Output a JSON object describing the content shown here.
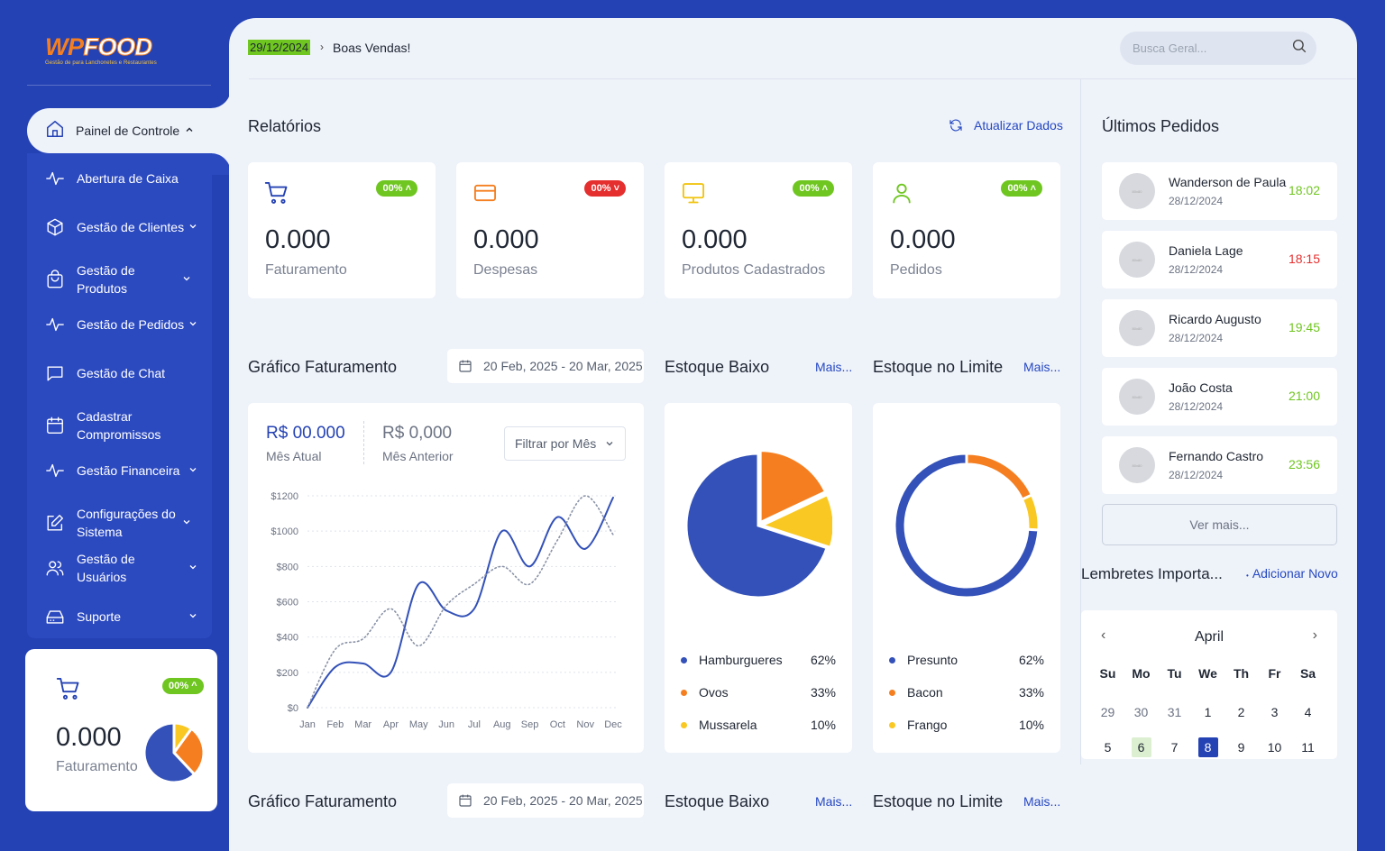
{
  "colors": {
    "primary": "#2442b4",
    "accent": "#f57f20",
    "success": "#6fc620",
    "danger": "#e52e2e",
    "yellow": "#f9c823"
  },
  "logo": {
    "brand_a": "WP",
    "brand_b": "FOOD",
    "tagline": "Gestão de para Lanchonetes e Restaurantes"
  },
  "sidebar": {
    "active": {
      "label": "Painel de Controle",
      "icon": "home-icon"
    },
    "items": [
      {
        "label": "Abertura de Caixa",
        "icon": "activity-icon",
        "has_chevron": false
      },
      {
        "label": "Gestão de Clientes",
        "icon": "box-icon",
        "has_chevron": true
      },
      {
        "label": "Gestão de Produtos",
        "icon": "bag-icon",
        "has_chevron": true
      },
      {
        "label": "Gestão de Pedidos",
        "icon": "activity-icon",
        "has_chevron": true
      },
      {
        "label": "Gestão de Chat",
        "icon": "chat-icon",
        "has_chevron": false
      },
      {
        "label": "Cadastrar Compromissos",
        "icon": "calendar-icon",
        "has_chevron": false
      },
      {
        "label": "Gestão Financeira",
        "icon": "activity-icon",
        "has_chevron": true
      },
      {
        "label": "Configurações do Sistema",
        "icon": "edit-icon",
        "has_chevron": true
      },
      {
        "label": "Gestão de Usuários",
        "icon": "users-icon",
        "has_chevron": true
      },
      {
        "label": "Suporte",
        "icon": "drive-icon",
        "has_chevron": true
      }
    ],
    "card": {
      "badge": "00%",
      "value": "0.000",
      "label": "Faturamento",
      "pie": [
        62,
        28,
        10
      ]
    }
  },
  "header": {
    "date": "29/12/2024",
    "greeting": "Boas Vendas!",
    "search_placeholder": "Busca Geral..."
  },
  "reports": {
    "title": "Relatórios",
    "refresh_label": "Atualizar Dados",
    "stats": [
      {
        "value": "0.000",
        "label": "Faturamento",
        "badge": "00%",
        "trend": "up",
        "icon": "cart-icon"
      },
      {
        "value": "0.000",
        "label": "Despesas",
        "badge": "00%",
        "trend": "down",
        "icon": "card-icon"
      },
      {
        "value": "0.000",
        "label": "Produtos Cadastrados",
        "badge": "00%",
        "trend": "up",
        "icon": "monitor-icon"
      },
      {
        "value": "0.000",
        "label": "Pedidos",
        "badge": "00%",
        "trend": "up",
        "icon": "user-icon"
      }
    ]
  },
  "revenue": {
    "title": "Gráfico Faturamento",
    "date_range": "20 Feb, 2025 - 20 Mar, 2025",
    "current_value": "R$ 00.000",
    "current_label": "Mês Atual",
    "previous_value": "R$ 0,000",
    "previous_label": "Mês Anterior",
    "filter_label": "Filtrar por Mês"
  },
  "low_stock": {
    "title": "Estoque Baixo",
    "more": "Mais...",
    "items": [
      {
        "name": "Hamburgueres",
        "pct": "62%",
        "color": "#3351b8"
      },
      {
        "name": "Ovos",
        "pct": "33%",
        "color": "#f57f20"
      },
      {
        "name": "Mussarela",
        "pct": "10%",
        "color": "#f9c823"
      }
    ]
  },
  "limit_stock": {
    "title": "Estoque no Limite",
    "more": "Mais...",
    "items": [
      {
        "name": "Presunto",
        "pct": "62%",
        "color": "#3351b8"
      },
      {
        "name": "Bacon",
        "pct": "33%",
        "color": "#f57f20"
      },
      {
        "name": "Frango",
        "pct": "10%",
        "color": "#f9c823"
      }
    ]
  },
  "orders": {
    "title": "Últimos Pedidos",
    "avatar_placeholder": "80x80",
    "items": [
      {
        "name": "Wanderson de Paula",
        "date": "28/12/2024",
        "time": "18:02",
        "status": "ok"
      },
      {
        "name": "Daniela Lage",
        "date": "28/12/2024",
        "time": "18:15",
        "status": "late"
      },
      {
        "name": "Ricardo Augusto",
        "date": "28/12/2024",
        "time": "19:45",
        "status": "ok"
      },
      {
        "name": "João Costa",
        "date": "28/12/2024",
        "time": "21:00",
        "status": "ok"
      },
      {
        "name": "Fernando Castro",
        "date": "28/12/2024",
        "time": "23:56",
        "status": "ok"
      }
    ],
    "see_more": "Ver mais..."
  },
  "reminders": {
    "title": "Lembretes Importa...",
    "add_label": "Adicionar Novo"
  },
  "calendar": {
    "month": "April",
    "weekdays": [
      "Su",
      "Mo",
      "Tu",
      "We",
      "Th",
      "Fr",
      "Sa"
    ],
    "days": [
      {
        "d": "29",
        "muted": true
      },
      {
        "d": "30",
        "muted": true
      },
      {
        "d": "31",
        "muted": true
      },
      {
        "d": "1"
      },
      {
        "d": "2"
      },
      {
        "d": "3"
      },
      {
        "d": "4"
      },
      {
        "d": "5"
      },
      {
        "d": "6",
        "today": true
      },
      {
        "d": "7"
      },
      {
        "d": "8",
        "selected": true
      },
      {
        "d": "9"
      },
      {
        "d": "10"
      },
      {
        "d": "11"
      }
    ]
  },
  "bottom": {
    "revenue_title": "Gráfico Faturamento",
    "date_range": "20 Feb, 2025 - 20 Mar, 2025",
    "low_stock_title": "Estoque Baixo",
    "limit_stock_title": "Estoque no Limite",
    "more": "Mais..."
  },
  "chart_data": {
    "type": "line",
    "categories": [
      "Jan",
      "Feb",
      "Mar",
      "Apr",
      "May",
      "Jun",
      "Jul",
      "Aug",
      "Sep",
      "Oct",
      "Nov",
      "Dec"
    ],
    "yticks": [
      "$1200",
      "$1000",
      "$800",
      "$600",
      "$400",
      "$200",
      "$0"
    ],
    "ylim": [
      0,
      1200
    ],
    "grid": true,
    "series": [
      {
        "style": "solid",
        "color": "#3351b8",
        "values": [
          0,
          230,
          250,
          200,
          700,
          550,
          560,
          1000,
          800,
          1080,
          900,
          1190
        ]
      },
      {
        "style": "dotted",
        "color": "#8a92a6",
        "values": [
          0,
          330,
          390,
          560,
          350,
          580,
          700,
          800,
          700,
          950,
          1200,
          980
        ]
      }
    ]
  }
}
